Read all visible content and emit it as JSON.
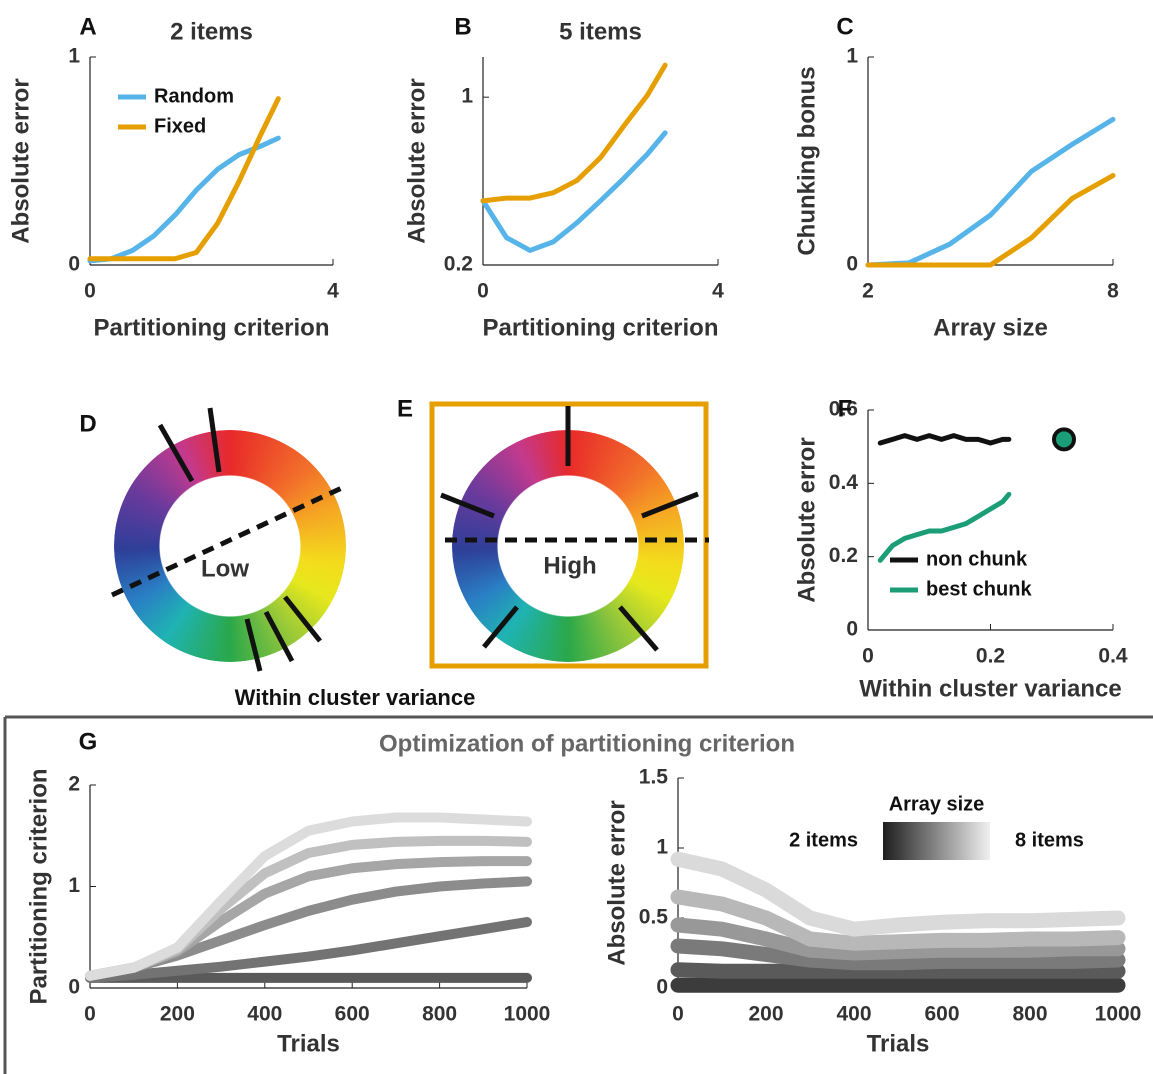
{
  "chart_data": [
    {
      "type": "line",
      "label": "A",
      "title": "2 items",
      "xlabel": "Partitioning criterion",
      "ylabel": "Absolute error",
      "x": [
        0,
        0.35,
        0.7,
        1.05,
        1.4,
        1.75,
        2.1,
        2.45,
        2.8,
        3.1
      ],
      "series": [
        {
          "name": "Random",
          "color": "#56b4e9",
          "values": [
            0.02,
            0.03,
            0.07,
            0.14,
            0.24,
            0.36,
            0.46,
            0.53,
            0.57,
            0.61
          ]
        },
        {
          "name": "Fixed",
          "color": "#e69f00",
          "values": [
            0.03,
            0.03,
            0.03,
            0.03,
            0.03,
            0.06,
            0.2,
            0.4,
            0.62,
            0.8
          ]
        }
      ],
      "xlim": [
        0,
        4
      ],
      "ylim": [
        0,
        1
      ],
      "xticks": [
        0,
        4
      ],
      "yticks": [
        0,
        1
      ]
    },
    {
      "type": "line",
      "label": "B",
      "title": "5 items",
      "xlabel": "Partitioning criterion",
      "ylabel": "Absolute error",
      "ylog": true,
      "x": [
        0,
        0.4,
        0.8,
        1.2,
        1.6,
        2.0,
        2.4,
        2.8,
        3.1
      ],
      "series": [
        {
          "color": "#56b4e9",
          "values": [
            0.37,
            0.26,
            0.23,
            0.25,
            0.3,
            0.37,
            0.46,
            0.58,
            0.71
          ]
        },
        {
          "color": "#e69f00",
          "values": [
            0.37,
            0.38,
            0.38,
            0.4,
            0.45,
            0.56,
            0.76,
            1.02,
            1.36
          ]
        }
      ],
      "xlim": [
        0,
        4
      ],
      "ylim": [
        0.2,
        1.47
      ],
      "xticks": [
        0,
        4
      ],
      "yticks": [
        0.2,
        1
      ]
    },
    {
      "type": "line",
      "label": "C",
      "xlabel": "Array size",
      "ylabel": "Chunking bonus",
      "x": [
        2,
        3,
        4,
        5,
        6,
        7,
        8
      ],
      "series": [
        {
          "color": "#56b4e9",
          "values": [
            0,
            0.01,
            0.1,
            0.24,
            0.45,
            0.58,
            0.7
          ]
        },
        {
          "color": "#e69f00",
          "values": [
            0,
            0,
            0,
            0,
            0.13,
            0.32,
            0.43
          ]
        }
      ],
      "xlim": [
        2,
        8
      ],
      "ylim": [
        0,
        1
      ],
      "xticks": [
        2,
        8
      ],
      "yticks": [
        0,
        1
      ]
    },
    {
      "type": "line",
      "label": "F",
      "xlabel": "Within cluster variance",
      "ylabel": "Absolute error",
      "x": [
        0.02,
        0.04,
        0.06,
        0.08,
        0.1,
        0.12,
        0.14,
        0.16,
        0.18,
        0.2,
        0.22,
        0.23
      ],
      "series": [
        {
          "name": "non chunk",
          "color": "#111111",
          "values": [
            0.51,
            0.52,
            0.53,
            0.52,
            0.53,
            0.52,
            0.53,
            0.52,
            0.52,
            0.51,
            0.52,
            0.52
          ]
        },
        {
          "name": "best chunk",
          "color": "#1b9e77",
          "values": [
            0.19,
            0.23,
            0.25,
            0.26,
            0.27,
            0.27,
            0.28,
            0.29,
            0.31,
            0.33,
            0.35,
            0.37
          ]
        }
      ],
      "marker": {
        "x": 0.32,
        "y": 0.52,
        "color": "#1b9e77"
      },
      "xlim": [
        0,
        0.4
      ],
      "ylim": [
        0,
        0.6
      ],
      "xticks": [
        0,
        0.2,
        0.4
      ],
      "yticks": [
        0,
        0.2,
        0.4,
        0.6
      ]
    },
    {
      "type": "line",
      "xlabel": "Trials",
      "ylabel": "Partitioning criterion",
      "x": [
        0,
        100,
        200,
        300,
        400,
        500,
        600,
        700,
        800,
        900,
        1000
      ],
      "series": [
        {
          "color": "#5a5a5a",
          "values": [
            0.1,
            0.1,
            0.1,
            0.1,
            0.1,
            0.1,
            0.1,
            0.1,
            0.1,
            0.1,
            0.1
          ]
        },
        {
          "color": "#737373",
          "values": [
            0.1,
            0.13,
            0.17,
            0.21,
            0.26,
            0.31,
            0.37,
            0.44,
            0.51,
            0.58,
            0.65
          ]
        },
        {
          "color": "#8c8c8c",
          "values": [
            0.12,
            0.2,
            0.32,
            0.47,
            0.62,
            0.76,
            0.87,
            0.95,
            1.0,
            1.03,
            1.05
          ]
        },
        {
          "color": "#a6a6a6",
          "values": [
            0.12,
            0.2,
            0.36,
            0.66,
            0.93,
            1.1,
            1.18,
            1.22,
            1.24,
            1.25,
            1.25
          ]
        },
        {
          "color": "#c0c0c0",
          "values": [
            0.12,
            0.2,
            0.38,
            0.78,
            1.13,
            1.33,
            1.41,
            1.44,
            1.45,
            1.45,
            1.44
          ]
        },
        {
          "color": "#dcdcdc",
          "values": [
            0.12,
            0.2,
            0.4,
            0.86,
            1.3,
            1.55,
            1.64,
            1.68,
            1.68,
            1.66,
            1.64
          ]
        }
      ],
      "xlim": [
        0,
        1000
      ],
      "ylim": [
        0,
        2
      ],
      "xticks": [
        0,
        200,
        400,
        600,
        800,
        1000
      ],
      "yticks": [
        0,
        1,
        2
      ]
    },
    {
      "type": "line",
      "xlabel": "Trials",
      "ylabel": "Absolute error",
      "x": [
        0,
        100,
        200,
        300,
        400,
        500,
        600,
        700,
        800,
        900,
        1000
      ],
      "series": [
        {
          "color": "#3c3c3c",
          "values": [
            0.02,
            0.02,
            0.02,
            0.02,
            0.02,
            0.02,
            0.02,
            0.02,
            0.02,
            0.02,
            0.02
          ]
        },
        {
          "color": "#5a5a5a",
          "values": [
            0.13,
            0.12,
            0.12,
            0.12,
            0.12,
            0.12,
            0.12,
            0.12,
            0.12,
            0.12,
            0.12
          ]
        },
        {
          "color": "#7a7a7a",
          "values": [
            0.3,
            0.28,
            0.24,
            0.2,
            0.18,
            0.18,
            0.19,
            0.19,
            0.19,
            0.19,
            0.2
          ]
        },
        {
          "color": "#989898",
          "values": [
            0.45,
            0.42,
            0.35,
            0.27,
            0.25,
            0.26,
            0.27,
            0.27,
            0.27,
            0.28,
            0.28
          ]
        },
        {
          "color": "#b8b8b8",
          "values": [
            0.65,
            0.6,
            0.5,
            0.35,
            0.32,
            0.33,
            0.34,
            0.34,
            0.35,
            0.35,
            0.36
          ]
        },
        {
          "color": "#dadada",
          "values": [
            0.92,
            0.85,
            0.7,
            0.5,
            0.42,
            0.45,
            0.47,
            0.48,
            0.48,
            0.49,
            0.5
          ]
        }
      ],
      "colorbar": {
        "title": "Array size",
        "min_label": "2 items",
        "max_label": "8 items",
        "colors": [
          "#1e1e1e",
          "#f0f0f0"
        ]
      },
      "xlim": [
        0,
        1000
      ],
      "ylim": [
        0,
        1.5
      ],
      "xticks": [
        0,
        200,
        400,
        600,
        800,
        1000
      ],
      "yticks": [
        0,
        0.5,
        1,
        1.5
      ]
    }
  ],
  "diagrams": [
    {
      "label": "D",
      "center_text": "Low"
    },
    {
      "label": "E",
      "center_text": "High"
    }
  ],
  "diagram_xlabel": "Within cluster variance",
  "panel_g": {
    "label": "G",
    "title": "Optimization of partitioning criterion"
  }
}
